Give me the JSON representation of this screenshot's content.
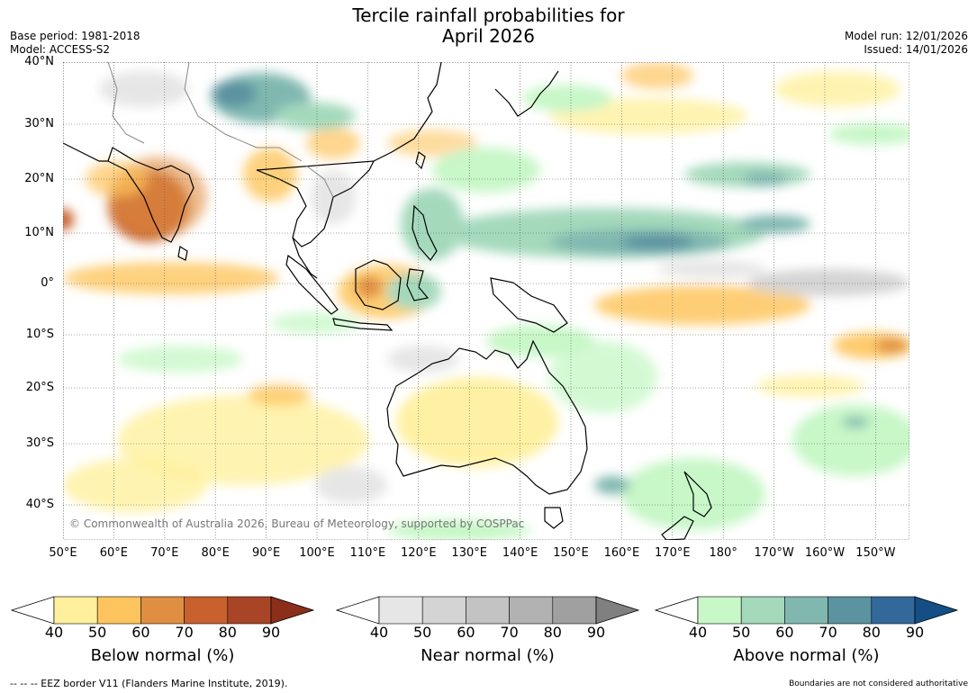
{
  "title_line1": "Tercile rainfall probabilities for",
  "title_line2": "April 2026",
  "base_period": "Base period: 1981-2018",
  "model": "Model: ACCESS-S2",
  "model_run": "Model run: 12/01/2026",
  "issued": "Issued: 14/01/2026",
  "copyright": "© Commonwealth of Australia 2026, Bureau of Meteorology, supported by COSPPac",
  "map": {
    "lat_labels": [
      "40°N",
      "30°N",
      "20°N",
      "10°N",
      "0°",
      "10°S",
      "20°S",
      "30°S",
      "40°S"
    ],
    "lon_labels": [
      "50°E",
      "60°E",
      "70°E",
      "80°E",
      "90°E",
      "100°E",
      "110°E",
      "120°E",
      "130°E",
      "140°E",
      "150°E",
      "160°E",
      "170°E",
      "180°",
      "170°W",
      "160°W",
      "150°W"
    ],
    "grid": true
  },
  "colorbars": [
    {
      "label": "Below normal (%)",
      "ticks": [
        "40",
        "50",
        "60",
        "70",
        "80",
        "90"
      ],
      "colors": [
        "#fff09e",
        "#fec55e",
        "#e08f42",
        "#c8612e",
        "#a84526",
        "#8b2e1a"
      ]
    },
    {
      "label": "Near normal (%)",
      "ticks": [
        "40",
        "50",
        "60",
        "70",
        "80",
        "90"
      ],
      "colors": [
        "#e6e6e6",
        "#d4d4d4",
        "#c3c3c3",
        "#b2b2b2",
        "#a0a0a0",
        "#808080"
      ]
    },
    {
      "label": "Above normal (%)",
      "ticks": [
        "40",
        "50",
        "60",
        "70",
        "80",
        "90"
      ],
      "colors": [
        "#c8f7c8",
        "#a4d9bc",
        "#80b8b0",
        "#5b93a0",
        "#33699a",
        "#134f85"
      ]
    }
  ],
  "footer_left": "--  --  -- EEZ border V11 (Flanders Marine Institute, 2019).",
  "footer_right": "Boundaries are not considered authoritative"
}
